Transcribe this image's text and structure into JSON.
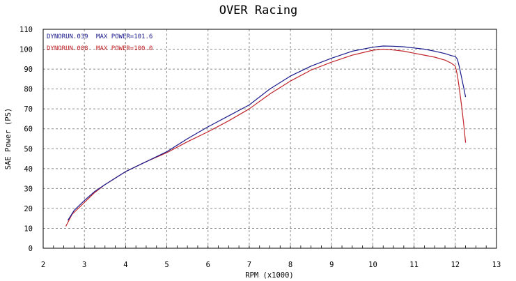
{
  "chart_data": {
    "type": "line",
    "title": "OVER Racing",
    "xlabel": "RPM (x1000)",
    "ylabel": "SAE Power (PS)",
    "xlim": [
      2,
      13
    ],
    "ylim": [
      0,
      110
    ],
    "xticks": [
      "2",
      "3",
      "4",
      "5",
      "6",
      "7",
      "8",
      "9",
      "10",
      "11",
      "12",
      "13"
    ],
    "yticks": [
      "0",
      "10",
      "20",
      "30",
      "40",
      "50",
      "60",
      "70",
      "80",
      "90",
      "100",
      "110"
    ],
    "grid": true,
    "legend_position": "top-left",
    "series": [
      {
        "name": "DYNORUN.039",
        "label_suffix": "MAX POWER=101.6",
        "color": "#1a1a8c",
        "x": [
          2.6,
          2.75,
          3.0,
          3.25,
          3.5,
          4.0,
          4.5,
          5.0,
          5.5,
          6.0,
          6.5,
          7.0,
          7.5,
          8.0,
          8.5,
          9.0,
          9.5,
          10.0,
          10.25,
          10.5,
          10.75,
          11.0,
          11.25,
          11.5,
          11.75,
          11.9,
          12.0,
          12.05,
          12.1,
          12.15,
          12.2,
          12.25
        ],
        "y": [
          14,
          19,
          24,
          28.5,
          32,
          38.5,
          43.5,
          48.5,
          55,
          61,
          66.5,
          72,
          80,
          86.5,
          91.5,
          95.5,
          99,
          101,
          101.6,
          101.5,
          101.2,
          100.6,
          100,
          99,
          97.8,
          96.8,
          96.3,
          95,
          91,
          86,
          81,
          76
        ]
      },
      {
        "name": "DYNORUN.008",
        "label_suffix": "MAX POWER=100.0",
        "color": "#c0242a",
        "x": [
          2.55,
          2.7,
          3.0,
          3.25,
          3.5,
          4.0,
          4.5,
          5.0,
          5.5,
          6.0,
          6.5,
          7.0,
          7.5,
          8.0,
          8.5,
          9.0,
          9.5,
          10.0,
          10.25,
          10.5,
          10.75,
          11.0,
          11.25,
          11.5,
          11.75,
          11.9,
          12.0,
          12.05,
          12.1,
          12.15,
          12.2,
          12.25
        ],
        "y": [
          11,
          17,
          23,
          28,
          32,
          38.5,
          43.5,
          48,
          53.5,
          58.5,
          64,
          70,
          77.5,
          84,
          89.5,
          93.5,
          97,
          99.5,
          100,
          99.6,
          99,
          98,
          97,
          96,
          94.5,
          93,
          91.5,
          87,
          80,
          72,
          63,
          53
        ]
      }
    ]
  }
}
